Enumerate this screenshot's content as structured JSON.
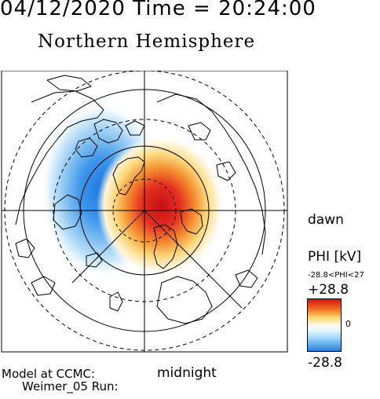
{
  "header": {
    "timestamp": "04/12/2020 Time = 20:24:00",
    "title": "Northern Hemisphere"
  },
  "labels": {
    "dawn": "dawn",
    "midnight": "midnight",
    "credit_line1": "Model at CCMC:",
    "credit_line2": "Weimer_05 Run:"
  },
  "colorbar": {
    "title": "PHI [kV]",
    "range_text": "-28.8<PHI<27",
    "max_label": "+28.8",
    "zero_label": "0",
    "min_label": "-28.8",
    "high_color": "#d01818",
    "low_color": "#1f7fe0"
  },
  "map": {
    "projection": "polar, north pole at center",
    "positive_cell_color": "#e02020",
    "negative_cell_color": "#2b86e6"
  }
}
